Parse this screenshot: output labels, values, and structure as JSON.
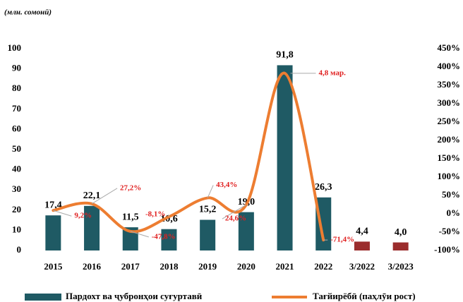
{
  "chart_data": {
    "type": "bar+line",
    "unit_label": "(млн. сомонӣ)",
    "categories": [
      "2015",
      "2016",
      "2017",
      "2018",
      "2019",
      "2020",
      "2021",
      "2022",
      "3/2022",
      "3/2023"
    ],
    "series": [
      {
        "name": "Пардохт ва ҷубронҳои суғуртавӣ",
        "type": "bar",
        "axis": "y",
        "color": "#1f5a64",
        "colors": [
          "#1f5a64",
          "#1f5a64",
          "#1f5a64",
          "#1f5a64",
          "#1f5a64",
          "#1f5a64",
          "#1f5a64",
          "#1f5a64",
          "#9b2d2d",
          "#9b2d2d"
        ],
        "values": [
          17.4,
          22.1,
          11.5,
          10.6,
          15.2,
          19.0,
          91.8,
          26.3,
          4.4,
          4.0
        ],
        "value_labels": [
          "17,4",
          "22,1",
          "11,5",
          "10,6",
          "15,2",
          "19,0",
          "91,8",
          "26,3",
          "4,4",
          "4,0"
        ]
      },
      {
        "name": "Тағйирёбӣ (паҳлӯи рост)",
        "type": "line",
        "axis": "y2",
        "color": "#ed7d31",
        "values": [
          9.2,
          27.2,
          -47.8,
          -8.1,
          43.4,
          24.6,
          383,
          -71.4,
          null,
          null
        ],
        "value_labels": [
          "9,2%",
          "27,2%",
          "-47,8%",
          "-8,1%",
          "43,4%",
          "24,6%",
          null,
          "-71,4%",
          null,
          null
        ]
      }
    ],
    "annotations": [
      {
        "text": "4,8 мар.",
        "series": 1,
        "index": 6
      }
    ],
    "ylim": [
      0,
      100
    ],
    "yticks": [
      0,
      10,
      20,
      30,
      40,
      50,
      60,
      70,
      80,
      90,
      100
    ],
    "y2lim": [
      -100,
      450
    ],
    "y2ticks": [
      {
        "value": -100,
        "label": "-100%"
      },
      {
        "value": -50,
        "label": "-50%"
      },
      {
        "value": 0,
        "label": "0%"
      },
      {
        "value": 50,
        "label": "50%"
      },
      {
        "value": 100,
        "label": "100%"
      },
      {
        "value": 150,
        "label": "150%"
      },
      {
        "value": 200,
        "label": "200%"
      },
      {
        "value": 250,
        "label": "250%"
      },
      {
        "value": 300,
        "label": "300%"
      },
      {
        "value": 350,
        "label": "350%"
      },
      {
        "value": 400,
        "label": "400%"
      },
      {
        "value": 450,
        "label": "450%"
      }
    ],
    "legend": "bottom",
    "grid": false
  }
}
